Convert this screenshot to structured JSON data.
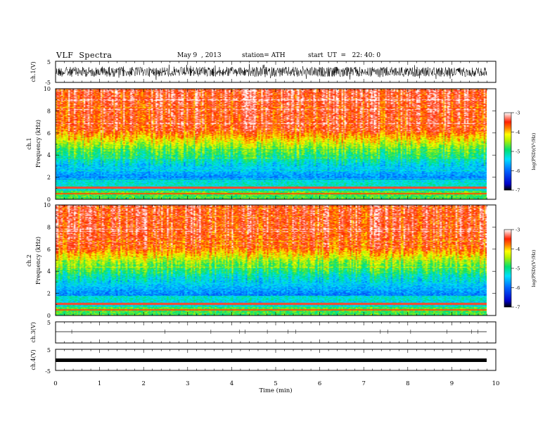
{
  "header": {
    "title": "VLF  Spectra",
    "date": "May 9  , 2013",
    "station": "station= ATH",
    "start": "start  UT  =   22: 40: 0"
  },
  "chart_data": [
    {
      "type": "line",
      "ylabel": "ch.1(V)",
      "ylim": [
        -5,
        5
      ],
      "yticks": [
        5,
        -5
      ],
      "description_free": true
    },
    {
      "type": "heatmap",
      "ylabel": "ch.1\nFrequency  (kHz)",
      "ylim": [
        0,
        10
      ],
      "yticks": [
        0,
        2,
        4,
        6,
        8,
        10
      ],
      "colorbar": {
        "label": "log(PSD)(V²/Hz)",
        "range": [
          -7,
          -3
        ],
        "ticks": [
          -3,
          -4,
          -5,
          -6,
          -7
        ]
      }
    },
    {
      "type": "heatmap",
      "ylabel": "ch.2\nFrequency  (kHz)",
      "ylim": [
        0,
        10
      ],
      "yticks": [
        0,
        2,
        4,
        6,
        8,
        10
      ],
      "colorbar": {
        "label": "log(PSD)(V²/Hz)",
        "range": [
          -7,
          -3
        ],
        "ticks": [
          -3,
          -4,
          -5,
          -6,
          -7
        ]
      }
    },
    {
      "type": "line",
      "ylabel": "ch.3(V)",
      "ylim": [
        -5,
        5
      ],
      "yticks": [
        5
      ]
    },
    {
      "type": "line",
      "ylabel": "ch.4(V)",
      "ylim": [
        -5,
        5
      ],
      "yticks": [
        5,
        -5
      ]
    }
  ],
  "xaxis": {
    "label": "Time  (min)",
    "ticks": [
      "0",
      "1",
      "2",
      "3",
      "4",
      "5",
      "6",
      "7",
      "8",
      "9",
      "10"
    ],
    "range": [
      0,
      10
    ],
    "data_end": 9.8
  },
  "colors": {
    "high": "#ff2000",
    "upper": "#ffff00",
    "mid": "#00e070",
    "low": "#0040ff",
    "floor": "#000000"
  }
}
